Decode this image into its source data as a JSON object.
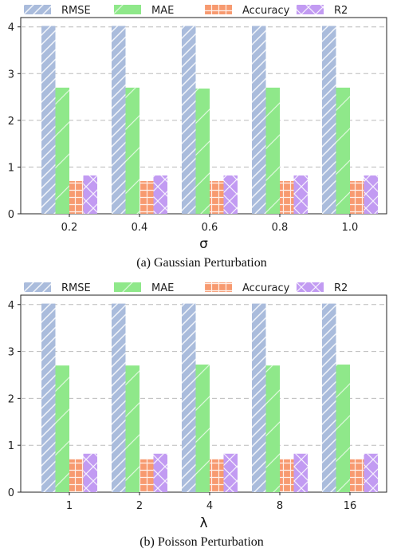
{
  "colors": {
    "RMSE": "#aabcdc",
    "MAE": "#8fe88a",
    "Accuracy": "#f79a70",
    "R2": "#c29bf2",
    "grid": "#bbbbbb"
  },
  "chart_data": [
    {
      "type": "bar",
      "caption": "(a)  Gaussian Perturbation",
      "xlabel": "σ",
      "ylabel": "",
      "categories": [
        "0.2",
        "0.4",
        "0.6",
        "0.8",
        "1.0"
      ],
      "ylim": [
        0,
        4.2
      ],
      "yticks": [
        "0",
        "1",
        "2",
        "3",
        "4"
      ],
      "grid": "horizontal dashed",
      "legend": "top, single row",
      "series": [
        {
          "name": "RMSE",
          "values": [
            4.02,
            4.02,
            4.02,
            4.02,
            4.02
          ]
        },
        {
          "name": "MAE",
          "values": [
            2.7,
            2.7,
            2.68,
            2.7,
            2.7
          ]
        },
        {
          "name": "Accuracy",
          "values": [
            0.7,
            0.7,
            0.7,
            0.7,
            0.7
          ]
        },
        {
          "name": "R2",
          "values": [
            0.82,
            0.82,
            0.82,
            0.82,
            0.82
          ]
        }
      ]
    },
    {
      "type": "bar",
      "caption": "(b)  Poisson Perturbation",
      "xlabel": "λ",
      "ylabel": "",
      "categories": [
        "1",
        "2",
        "4",
        "8",
        "16"
      ],
      "ylim": [
        0,
        4.2
      ],
      "yticks": [
        "0",
        "1",
        "2",
        "3",
        "4"
      ],
      "grid": "horizontal dashed",
      "legend": "top, single row",
      "series": [
        {
          "name": "RMSE",
          "values": [
            4.02,
            4.02,
            4.02,
            4.02,
            4.02
          ]
        },
        {
          "name": "MAE",
          "values": [
            2.7,
            2.7,
            2.72,
            2.7,
            2.72
          ]
        },
        {
          "name": "Accuracy",
          "values": [
            0.7,
            0.7,
            0.7,
            0.7,
            0.7
          ]
        },
        {
          "name": "R2",
          "values": [
            0.82,
            0.82,
            0.82,
            0.82,
            0.82
          ]
        }
      ]
    }
  ]
}
